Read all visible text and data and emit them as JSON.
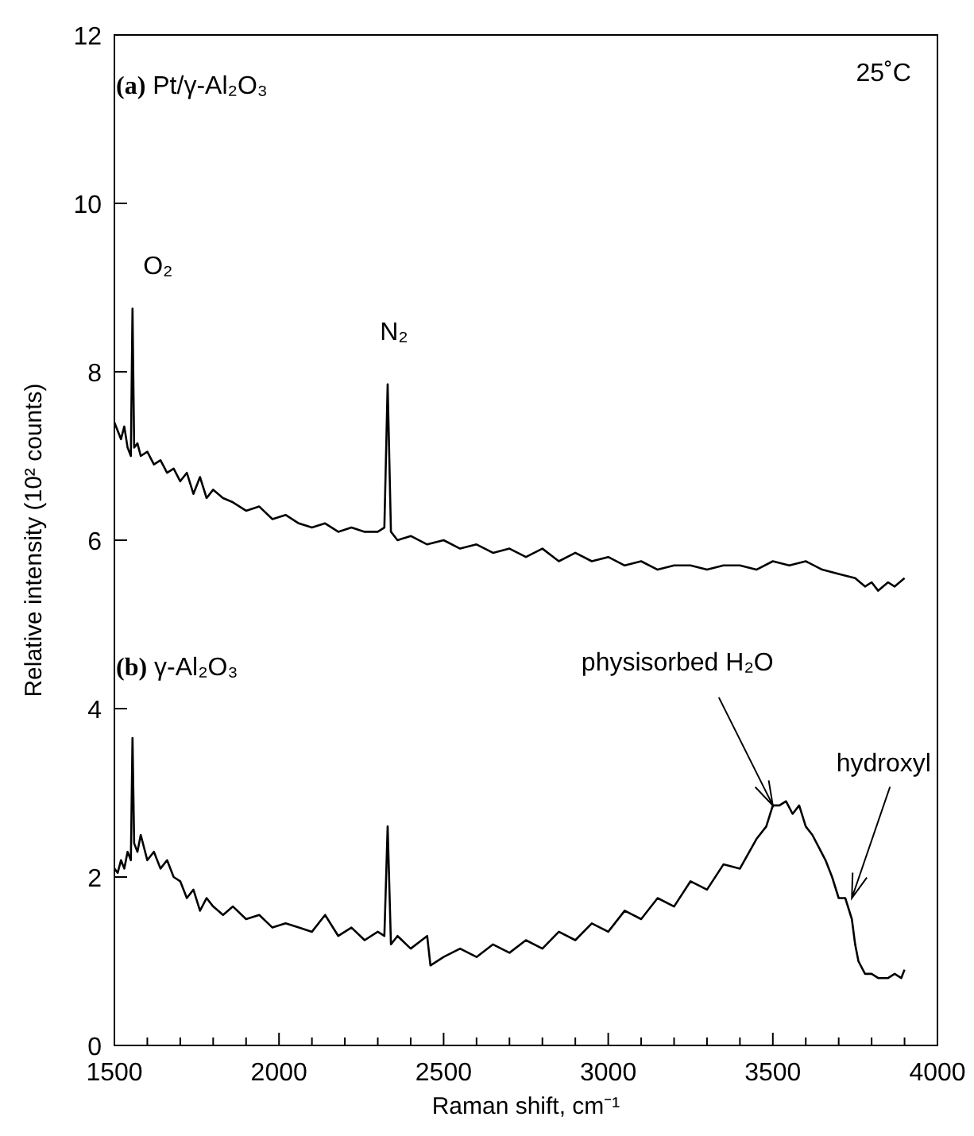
{
  "chart_data": {
    "type": "line",
    "xlabel": "Raman shift, cm⁻¹",
    "ylabel": "Relative intensity (10² counts)",
    "xlim": [
      1500,
      4000
    ],
    "ylim": [
      0,
      12
    ],
    "xticks": [
      1500,
      {
        "value": 1600,
        "label": null
      },
      {
        "value": 1700,
        "label": null
      },
      {
        "value": 1800,
        "label": null
      },
      {
        "value": 1900,
        "label": null
      },
      2000,
      {
        "value": 2100,
        "label": null
      },
      {
        "value": 2200,
        "label": null
      },
      {
        "value": 2300,
        "label": null
      },
      {
        "value": 2400,
        "label": null
      },
      2500,
      {
        "value": 2600,
        "label": null
      },
      {
        "value": 2700,
        "label": null
      },
      {
        "value": 2800,
        "label": null
      },
      {
        "value": 2900,
        "label": null
      },
      3000,
      {
        "value": 3100,
        "label": null
      },
      {
        "value": 3200,
        "label": null
      },
      {
        "value": 3300,
        "label": null
      },
      {
        "value": 3400,
        "label": null
      },
      3500,
      {
        "value": 3600,
        "label": null
      },
      {
        "value": 3700,
        "label": null
      },
      {
        "value": 3800,
        "label": null
      },
      {
        "value": 3900,
        "label": null
      },
      4000
    ],
    "yticks": [
      0,
      2,
      4,
      6,
      8,
      10,
      12
    ],
    "marker": "none",
    "line_style": "solid",
    "series": [
      {
        "color": "#000000",
        "x": [
          1500,
          1510,
          1520,
          1530,
          1540,
          1550,
          1555,
          1560,
          1570,
          1580,
          1600,
          1620,
          1640,
          1660,
          1680,
          1700,
          1720,
          1740,
          1760,
          1780,
          1800,
          1830,
          1860,
          1900,
          1940,
          1980,
          2020,
          2060,
          2100,
          2140,
          2180,
          2220,
          2260,
          2300,
          2320,
          2330,
          2340,
          2360,
          2400,
          2450,
          2500,
          2550,
          2600,
          2650,
          2700,
          2750,
          2800,
          2850,
          2900,
          2950,
          3000,
          3050,
          3100,
          3150,
          3200,
          3250,
          3300,
          3350,
          3400,
          3450,
          3500,
          3550,
          3600,
          3650,
          3700,
          3750,
          3780,
          3800,
          3820,
          3850,
          3870,
          3900
        ],
        "values": [
          7.4,
          7.3,
          7.2,
          7.35,
          7.1,
          7.0,
          8.75,
          7.1,
          7.15,
          7.0,
          7.05,
          6.9,
          6.95,
          6.8,
          6.85,
          6.7,
          6.8,
          6.55,
          6.75,
          6.5,
          6.6,
          6.5,
          6.45,
          6.35,
          6.4,
          6.25,
          6.3,
          6.2,
          6.15,
          6.2,
          6.1,
          6.15,
          6.1,
          6.1,
          6.15,
          7.85,
          6.1,
          6.0,
          6.05,
          5.95,
          6.0,
          5.9,
          5.95,
          5.85,
          5.9,
          5.8,
          5.9,
          5.75,
          5.85,
          5.75,
          5.8,
          5.7,
          5.75,
          5.65,
          5.7,
          5.7,
          5.65,
          5.7,
          5.7,
          5.65,
          5.75,
          5.7,
          5.75,
          5.65,
          5.6,
          5.55,
          5.45,
          5.5,
          5.4,
          5.5,
          5.45,
          5.55
        ]
      },
      {
        "color": "#000000",
        "x": [
          1500,
          1510,
          1520,
          1530,
          1540,
          1550,
          1555,
          1560,
          1570,
          1580,
          1600,
          1620,
          1640,
          1660,
          1680,
          1700,
          1720,
          1740,
          1760,
          1780,
          1800,
          1830,
          1860,
          1900,
          1940,
          1980,
          2020,
          2060,
          2100,
          2140,
          2180,
          2220,
          2260,
          2300,
          2320,
          2330,
          2340,
          2360,
          2400,
          2450,
          2460,
          2500,
          2550,
          2600,
          2650,
          2700,
          2750,
          2800,
          2850,
          2900,
          2950,
          3000,
          3050,
          3100,
          3150,
          3200,
          3250,
          3300,
          3350,
          3400,
          3450,
          3480,
          3500,
          3520,
          3540,
          3560,
          3580,
          3600,
          3620,
          3640,
          3660,
          3680,
          3700,
          3720,
          3740,
          3750,
          3760,
          3780,
          3800,
          3820,
          3850,
          3870,
          3890,
          3900
        ],
        "values": [
          2.1,
          2.05,
          2.2,
          2.1,
          2.3,
          2.2,
          3.65,
          2.4,
          2.3,
          2.5,
          2.2,
          2.3,
          2.1,
          2.2,
          2.0,
          1.95,
          1.75,
          1.85,
          1.6,
          1.75,
          1.65,
          1.55,
          1.65,
          1.5,
          1.55,
          1.4,
          1.45,
          1.4,
          1.35,
          1.55,
          1.3,
          1.4,
          1.25,
          1.35,
          1.3,
          2.6,
          1.2,
          1.3,
          1.15,
          1.3,
          0.95,
          1.05,
          1.15,
          1.05,
          1.2,
          1.1,
          1.25,
          1.15,
          1.35,
          1.25,
          1.45,
          1.35,
          1.6,
          1.5,
          1.75,
          1.65,
          1.95,
          1.85,
          2.15,
          2.1,
          2.45,
          2.6,
          2.85,
          2.85,
          2.9,
          2.75,
          2.85,
          2.6,
          2.5,
          2.35,
          2.2,
          2.0,
          1.75,
          1.75,
          1.5,
          1.2,
          1.0,
          0.85,
          0.85,
          0.8,
          0.8,
          0.85,
          0.8,
          0.9
        ]
      }
    ],
    "annotations": [
      "(a) Pt/γ-Al₂O₃",
      "25˚C",
      "(b) γ-Al₂O₃",
      {
        "text": "O₂",
        "x": 1555,
        "y": 8.75
      },
      {
        "text": "N₂",
        "x": 2330,
        "y": 7.85
      },
      {
        "text": "physisorbed  H₂O",
        "x": 3500,
        "y": 2.85
      },
      {
        "text": "hydroxyl",
        "x": 3740,
        "y": 1.75
      }
    ]
  }
}
